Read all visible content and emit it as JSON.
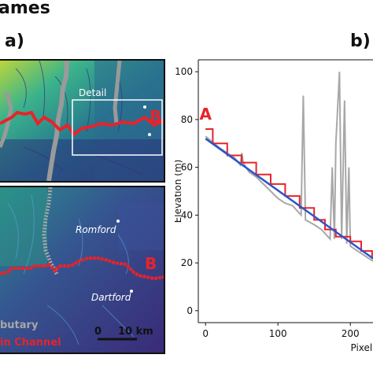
{
  "page_header": "ames",
  "panel_a": {
    "label": "a)",
    "top_map": {
      "detail_label": "Detail",
      "point_label": "B"
    },
    "bottom_map": {
      "point_label": "B",
      "places": [
        "Romford",
        "Dartford"
      ],
      "legend": {
        "tributary": "butary",
        "main_channel": "in Channel"
      },
      "scalebar": {
        "zero": "0",
        "dist": "10 km"
      }
    }
  },
  "panel_b": {
    "label": "b)"
  },
  "colors": {
    "main_channel": "#e8232a",
    "tributary": "#a8a8a8",
    "fit_line": "#2a55c8",
    "profile": "#a8a8a8"
  },
  "chart_data": {
    "type": "line",
    "xlabel": "Pixel no",
    "ylabel": "Elevation (m)",
    "xlim": [
      -10,
      240
    ],
    "ylim": [
      -5,
      105
    ],
    "xticks": [
      0,
      100,
      200
    ],
    "yticks": [
      0,
      20,
      40,
      60,
      80,
      100
    ],
    "annotation": "A",
    "series": [
      {
        "kind": "spiky",
        "x": [
          0,
          20,
          40,
          48,
          50,
          52,
          60,
          70,
          80,
          90,
          100,
          110,
          120,
          132,
          135,
          138,
          150,
          160,
          172,
          175,
          178,
          180,
          185,
          188,
          192,
          195,
          198,
          200,
          210,
          220,
          230,
          240
        ],
        "y": [
          73,
          68,
          64,
          61,
          66,
          62,
          58,
          56,
          53,
          50,
          47,
          45,
          44,
          40,
          90,
          38,
          36,
          34,
          30,
          60,
          30,
          70,
          100,
          30,
          88,
          28,
          60,
          27,
          25,
          23,
          21,
          20
        ]
      },
      {
        "kind": "step",
        "x": [
          0,
          10,
          10,
          30,
          30,
          50,
          50,
          70,
          70,
          90,
          90,
          110,
          110,
          130,
          130,
          150,
          150,
          165,
          165,
          180,
          180,
          200,
          200,
          215,
          215,
          230,
          230,
          240
        ],
        "y": [
          76,
          76,
          70,
          70,
          65,
          65,
          62,
          62,
          57,
          57,
          53,
          53,
          48,
          48,
          43,
          43,
          38,
          38,
          34,
          34,
          31,
          31,
          29,
          29,
          25,
          25,
          22,
          22
        ]
      },
      {
        "kind": "fit",
        "x": [
          0,
          240
        ],
        "y": [
          72,
          20
        ]
      }
    ]
  }
}
